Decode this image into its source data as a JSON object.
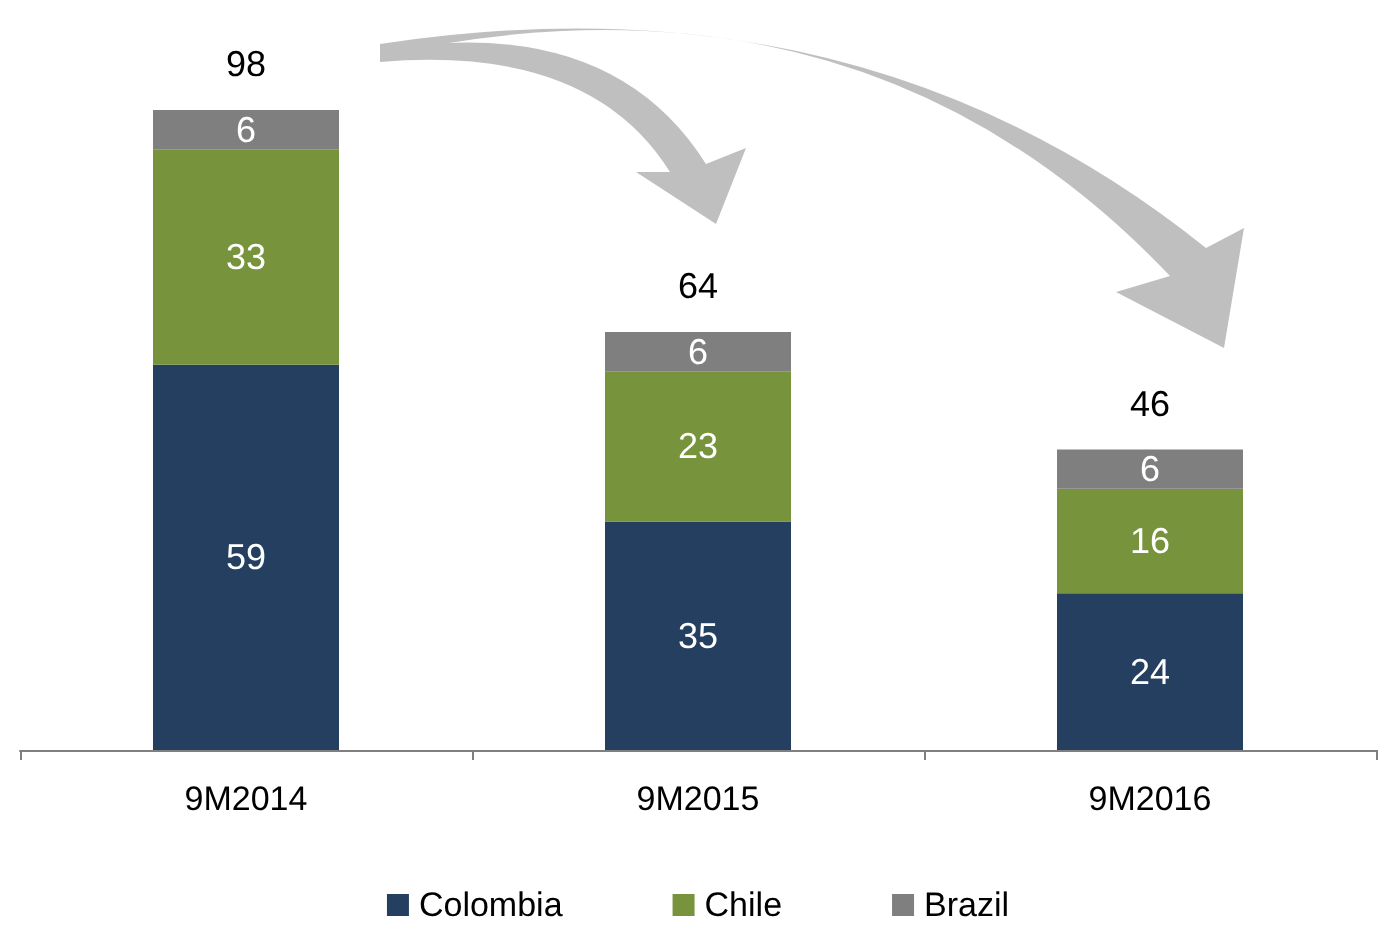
{
  "chart_data": {
    "type": "bar",
    "stacked": true,
    "categories": [
      "9M2014",
      "9M2015",
      "9M2016"
    ],
    "series": [
      {
        "name": "Colombia",
        "color": "#243f60",
        "values": [
          59,
          35,
          24
        ]
      },
      {
        "name": "Chile",
        "color": "#77933c",
        "values": [
          33,
          23,
          16
        ]
      },
      {
        "name": "Brazil",
        "color": "#7f7f7f",
        "values": [
          6,
          6,
          6
        ]
      }
    ],
    "data_labels": true,
    "totals": [
      "98",
      "64",
      "46"
    ],
    "legend": "bottom"
  }
}
